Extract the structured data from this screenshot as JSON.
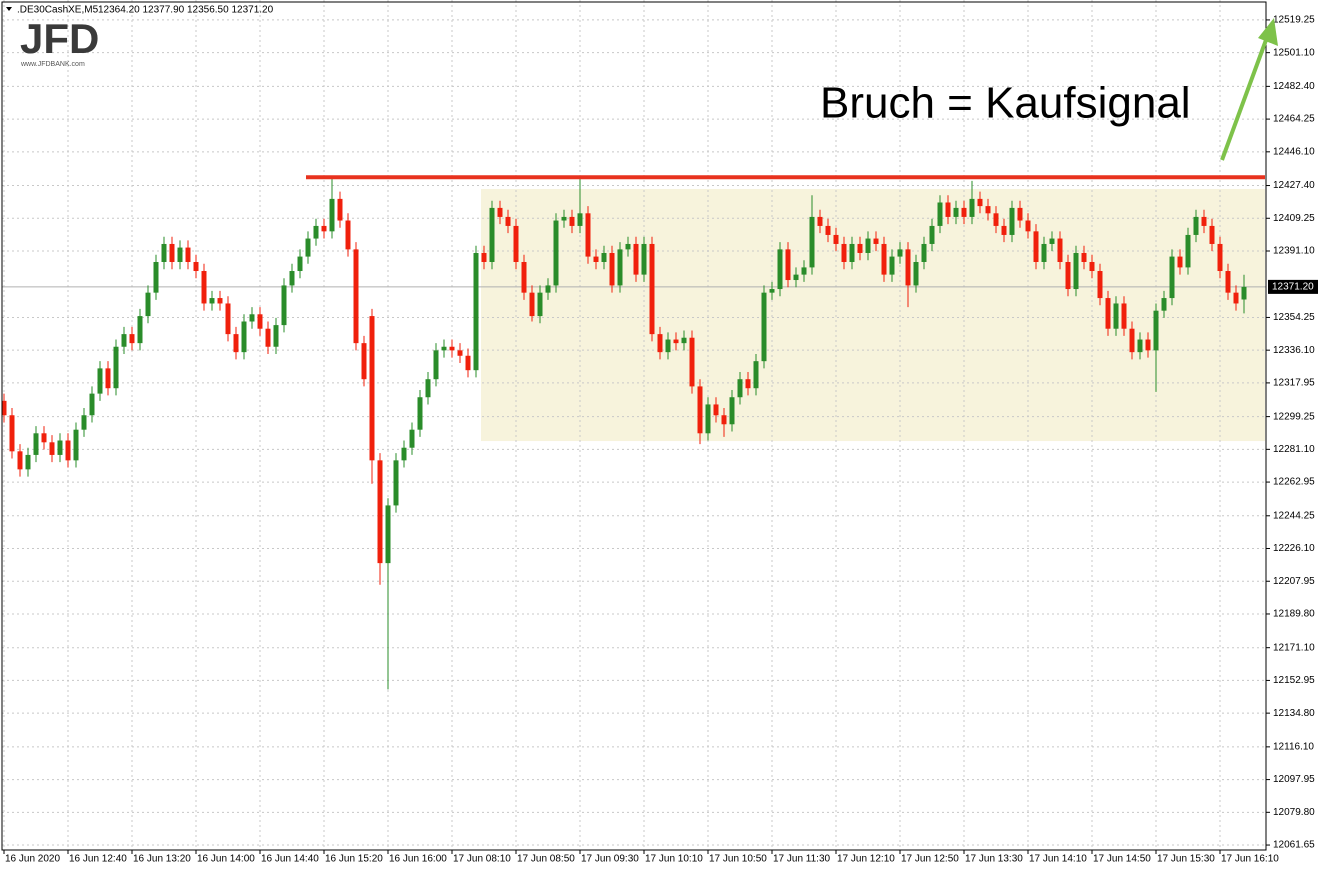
{
  "header": {
    "symbol": ".DE30CashXE,M5",
    "quote": "12364.20 12377.90 12356.50 12371.20"
  },
  "logo": {
    "brand": "JFD",
    "url": "www.JFDBANK.com"
  },
  "chart_data": {
    "type": "candlestick",
    "annotation": "Bruch = Kaufsignal",
    "up_color": "#2a8c2a",
    "down_color": "#f0200c",
    "grid": true,
    "ylim": [
      12058.9,
      12530.3
    ],
    "yticks": [
      12519.25,
      {
        "value": 12501.1,
        "label": "12501.10"
      },
      {
        "value": 12482.4,
        "label": "12482.40"
      },
      12464.25,
      {
        "value": 12446.1,
        "label": "12446.10"
      },
      {
        "value": 12427.4,
        "label": "12427.40"
      },
      12409.25,
      {
        "value": 12391.1,
        "label": "12391.10"
      },
      12354.25,
      {
        "value": 12336.1,
        "label": "12336.10"
      },
      12317.95,
      12299.25,
      {
        "value": 12281.1,
        "label": "12281.10"
      },
      12262.95,
      12244.25,
      {
        "value": 12226.1,
        "label": "12226.10"
      },
      12207.95,
      {
        "value": 12189.8,
        "label": "12189.80"
      },
      {
        "value": 12171.1,
        "label": "12171.10"
      },
      12152.95,
      {
        "value": 12134.8,
        "label": "12134.80"
      },
      {
        "value": 12116.1,
        "label": "12116.10"
      },
      12097.95,
      {
        "value": 12079.8,
        "label": "12079.80"
      },
      12061.65
    ],
    "current_price": {
      "value": 12371.2,
      "label": "12371.20"
    },
    "resistance": 12432,
    "range_box": {
      "low": 12285.7,
      "high": 12425.5
    },
    "categories": [
      "16 Jun 2020",
      null,
      null,
      null,
      null,
      null,
      null,
      null,
      "16 Jun 12:40",
      null,
      null,
      null,
      null,
      null,
      null,
      null,
      "16 Jun 13:20",
      null,
      null,
      null,
      null,
      null,
      null,
      null,
      "16 Jun 14:00",
      null,
      null,
      null,
      null,
      null,
      null,
      null,
      "16 Jun 14:40",
      null,
      null,
      null,
      null,
      null,
      null,
      null,
      "16 Jun 15:20",
      null,
      null,
      null,
      null,
      null,
      null,
      null,
      "16 Jun 16:00",
      null,
      null,
      null,
      null,
      null,
      null,
      null,
      "17 Jun 08:10",
      null,
      null,
      null,
      null,
      null,
      null,
      null,
      "17 Jun 08:50",
      null,
      null,
      null,
      null,
      null,
      null,
      null,
      "17 Jun 09:30",
      null,
      null,
      null,
      null,
      null,
      null,
      null,
      "17 Jun 10:10",
      null,
      null,
      null,
      null,
      null,
      null,
      null,
      "17 Jun 10:50",
      null,
      null,
      null,
      null,
      null,
      null,
      null,
      "17 Jun 11:30",
      null,
      null,
      null,
      null,
      null,
      null,
      null,
      "17 Jun 12:10",
      null,
      null,
      null,
      null,
      null,
      null,
      null,
      "17 Jun 12:50",
      null,
      null,
      null,
      null,
      null,
      null,
      null,
      "17 Jun 13:30",
      null,
      null,
      null,
      null,
      null,
      null,
      null,
      "17 Jun 14:10",
      null,
      null,
      null,
      null,
      null,
      null,
      null,
      "17 Jun 14:50",
      null,
      null,
      null,
      null,
      null,
      null,
      null,
      "17 Jun 15:30",
      null,
      null,
      null,
      null,
      null,
      null,
      null,
      "17 Jun 16:10",
      null,
      null,
      null
    ],
    "ohlc": [
      [
        12308,
        12312,
        12296,
        12300
      ],
      [
        12300,
        12304,
        12276,
        12280
      ],
      [
        12280,
        12284,
        12266,
        12270
      ],
      [
        12270,
        12282,
        12266,
        12278
      ],
      [
        12278,
        12294,
        12274,
        12290
      ],
      [
        12290,
        12294,
        12281,
        12285
      ],
      [
        12285,
        12289,
        12274,
        12278
      ],
      [
        12278,
        12290,
        12274,
        12286
      ],
      [
        12286,
        12290,
        12271,
        12275
      ],
      [
        12275,
        12296,
        12271,
        12292
      ],
      [
        12292,
        12304,
        12288,
        12300
      ],
      [
        12300,
        12316,
        12296,
        12312
      ],
      [
        12312,
        12330,
        12308,
        12326
      ],
      [
        12326,
        12330,
        12311,
        12315
      ],
      [
        12315,
        12342,
        12311,
        12338
      ],
      [
        12338,
        12349,
        12334,
        12345
      ],
      [
        12345,
        12349,
        12336,
        12340
      ],
      [
        12340,
        12359,
        12336,
        12355
      ],
      [
        12355,
        12372,
        12351,
        12368
      ],
      [
        12368,
        12389,
        12364,
        12385
      ],
      [
        12385,
        12399,
        12381,
        12395
      ],
      [
        12395,
        12399,
        12381,
        12385
      ],
      [
        12385,
        12397,
        12381,
        12393
      ],
      [
        12393,
        12397,
        12381,
        12385
      ],
      [
        12385,
        12389,
        12376,
        12380
      ],
      [
        12380,
        12384,
        12358,
        12362
      ],
      [
        12362,
        12369,
        12358,
        12365
      ],
      [
        12365,
        12369,
        12358,
        12362
      ],
      [
        12362,
        12366,
        12341,
        12345
      ],
      [
        12345,
        12349,
        12331,
        12335
      ],
      [
        12335,
        12356,
        12331,
        12352
      ],
      [
        12352,
        12360,
        12348,
        12356
      ],
      [
        12356,
        12360,
        12344,
        12348
      ],
      [
        12348,
        12352,
        12334,
        12338
      ],
      [
        12338,
        12354,
        12334,
        12350
      ],
      [
        12350,
        12376,
        12346,
        12372
      ],
      [
        12372,
        12384,
        12368,
        12380
      ],
      [
        12380,
        12392,
        12376,
        12388
      ],
      [
        12388,
        12402,
        12384,
        12398
      ],
      [
        12398,
        12409,
        12394,
        12405
      ],
      [
        12405,
        12409,
        12398,
        12402
      ],
      [
        12402,
        12432,
        12398,
        12420
      ],
      [
        12420,
        12424,
        12404,
        12408
      ],
      [
        12408,
        12412,
        12388,
        12392
      ],
      [
        12392,
        12396,
        12336,
        12340
      ],
      [
        12340,
        12344,
        12316,
        12320
      ],
      [
        12355,
        12359,
        12262,
        12275
      ],
      [
        12275,
        12279,
        12206,
        12218
      ],
      [
        12218,
        12254,
        12148,
        12250
      ],
      [
        12250,
        12279,
        12246,
        12275
      ],
      [
        12275,
        12286,
        12271,
        12282
      ],
      [
        12282,
        12296,
        12278,
        12292
      ],
      [
        12292,
        12314,
        12288,
        12310
      ],
      [
        12310,
        12324,
        12306,
        12320
      ],
      [
        12320,
        12340,
        12316,
        12336
      ],
      [
        12336,
        12342,
        12332,
        12338
      ],
      [
        12338,
        12342,
        12332,
        12336
      ],
      [
        12336,
        12340,
        12329,
        12333
      ],
      [
        12333,
        12337,
        12321,
        12325
      ],
      [
        12325,
        12394,
        12321,
        12390
      ],
      [
        12390,
        12394,
        12381,
        12385
      ],
      [
        12385,
        12419,
        12381,
        12415
      ],
      [
        12415,
        12419,
        12406,
        12410
      ],
      [
        12410,
        12414,
        12401,
        12405
      ],
      [
        12405,
        12409,
        12381,
        12385
      ],
      [
        12385,
        12389,
        12364,
        12368
      ],
      [
        12368,
        12372,
        12352,
        12355
      ],
      [
        12355,
        12372,
        12351,
        12368
      ],
      [
        12368,
        12376,
        12364,
        12372
      ],
      [
        12372,
        12412,
        12368,
        12408
      ],
      [
        12408,
        12414,
        12404,
        12410
      ],
      [
        12410,
        12414,
        12401,
        12405
      ],
      [
        12405,
        12432,
        12401,
        12412
      ],
      [
        12412,
        12416,
        12384,
        12388
      ],
      [
        12388,
        12392,
        12381,
        12385
      ],
      [
        12385,
        12394,
        12381,
        12390
      ],
      [
        12390,
        12394,
        12368,
        12372
      ],
      [
        12372,
        12396,
        12368,
        12392
      ],
      [
        12392,
        12399,
        12388,
        12395
      ],
      [
        12395,
        12399,
        12374,
        12378
      ],
      [
        12378,
        12399,
        12374,
        12395
      ],
      [
        12395,
        12399,
        12341,
        12345
      ],
      [
        12345,
        12349,
        12331,
        12335
      ],
      [
        12335,
        12346,
        12331,
        12342
      ],
      [
        12342,
        12346,
        12336,
        12340
      ],
      [
        12340,
        12347,
        12336,
        12343
      ],
      [
        12343,
        12347,
        12312,
        12316
      ],
      [
        12316,
        12320,
        12284,
        12290
      ],
      [
        12290,
        12310,
        12286,
        12306
      ],
      [
        12306,
        12310,
        12296,
        12300
      ],
      [
        12300,
        12304,
        12288,
        12295
      ],
      [
        12295,
        12314,
        12291,
        12310
      ],
      [
        12310,
        12324,
        12306,
        12320
      ],
      [
        12320,
        12324,
        12311,
        12315
      ],
      [
        12315,
        12334,
        12311,
        12330
      ],
      [
        12330,
        12372,
        12326,
        12368
      ],
      [
        12368,
        12374,
        12364,
        12370
      ],
      [
        12370,
        12396,
        12366,
        12392
      ],
      [
        12392,
        12396,
        12371,
        12375
      ],
      [
        12375,
        12382,
        12371,
        12378
      ],
      [
        12378,
        12386,
        12374,
        12382
      ],
      [
        12382,
        12422,
        12378,
        12410
      ],
      [
        12410,
        12414,
        12401,
        12405
      ],
      [
        12405,
        12409,
        12396,
        12400
      ],
      [
        12400,
        12404,
        12391,
        12395
      ],
      [
        12395,
        12399,
        12381,
        12385
      ],
      [
        12385,
        12399,
        12381,
        12395
      ],
      [
        12395,
        12399,
        12386,
        12390
      ],
      [
        12390,
        12402,
        12386,
        12398
      ],
      [
        12398,
        12402,
        12391,
        12395
      ],
      [
        12395,
        12399,
        12374,
        12378
      ],
      [
        12378,
        12392,
        12374,
        12388
      ],
      [
        12388,
        12396,
        12384,
        12392
      ],
      [
        12392,
        12396,
        12360,
        12372
      ],
      [
        12372,
        12389,
        12368,
        12385
      ],
      [
        12385,
        12399,
        12381,
        12395
      ],
      [
        12395,
        12409,
        12391,
        12405
      ],
      [
        12405,
        12422,
        12401,
        12418
      ],
      [
        12418,
        12422,
        12406,
        12410
      ],
      [
        12410,
        12419,
        12406,
        12415
      ],
      [
        12415,
        12419,
        12406,
        12410
      ],
      [
        12410,
        12430,
        12406,
        12420
      ],
      [
        12420,
        12424,
        12412,
        12416
      ],
      [
        12416,
        12420,
        12408,
        12412
      ],
      [
        12412,
        12416,
        12401,
        12405
      ],
      [
        12405,
        12409,
        12396,
        12400
      ],
      [
        12400,
        12419,
        12396,
        12415
      ],
      [
        12415,
        12419,
        12404,
        12408
      ],
      [
        12408,
        12412,
        12398,
        12402
      ],
      [
        12402,
        12406,
        12381,
        12385
      ],
      [
        12385,
        12399,
        12381,
        12395
      ],
      [
        12395,
        12402,
        12391,
        12398
      ],
      [
        12398,
        12402,
        12381,
        12385
      ],
      [
        12385,
        12389,
        12366,
        12370
      ],
      [
        12370,
        12394,
        12366,
        12390
      ],
      [
        12390,
        12394,
        12381,
        12385
      ],
      [
        12385,
        12389,
        12376,
        12380
      ],
      [
        12380,
        12384,
        12361,
        12365
      ],
      [
        12365,
        12369,
        12344,
        12348
      ],
      [
        12348,
        12366,
        12344,
        12362
      ],
      [
        12362,
        12366,
        12344,
        12348
      ],
      [
        12348,
        12352,
        12331,
        12335
      ],
      [
        12335,
        12346,
        12331,
        12342
      ],
      [
        12342,
        12346,
        12332,
        12336
      ],
      [
        12336,
        12362,
        12313,
        12358
      ],
      [
        12358,
        12369,
        12354,
        12365
      ],
      [
        12365,
        12392,
        12361,
        12388
      ],
      [
        12388,
        12392,
        12378,
        12382
      ],
      [
        12382,
        12404,
        12378,
        12400
      ],
      [
        12400,
        12414,
        12396,
        12410
      ],
      [
        12410,
        12414,
        12401,
        12405
      ],
      [
        12405,
        12409,
        12391,
        12395
      ],
      [
        12395,
        12399,
        12376,
        12380
      ],
      [
        12380,
        12384,
        12364,
        12368
      ],
      [
        12368,
        12372,
        12358,
        12362
      ],
      [
        12364.2,
        12377.9,
        12356.5,
        12371.2
      ]
    ]
  }
}
